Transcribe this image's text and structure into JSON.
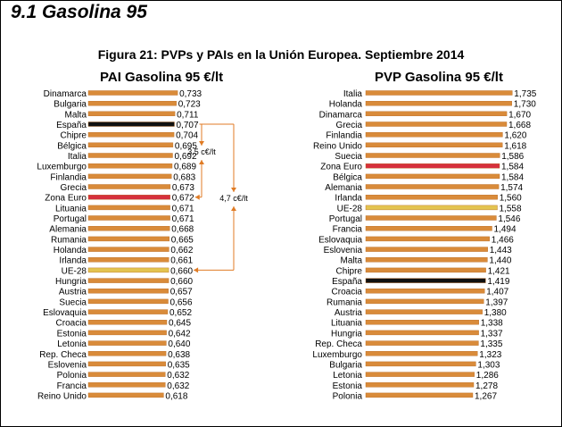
{
  "page": {
    "title": "9.1 Gasolina 95"
  },
  "figure": {
    "title": "Figura 21: PVPs y PAIs en la Unión Europea. Septiembre 2014"
  },
  "colors": {
    "bar": "#d98b3a",
    "bar_edge": "#b86a22",
    "highlight_spain": "#111111",
    "highlight_eurozone": "#d6303c",
    "highlight_eu28": "#e3c450",
    "annotation": "#e07b24"
  },
  "chart_data": [
    {
      "type": "bar",
      "orientation": "horizontal",
      "title": "PAI Gasolina 95 €/lt",
      "categories": [
        "Dinamarca",
        "Bulgaria",
        "Malta",
        "España",
        "Chipre",
        "Bélgica",
        "Italia",
        "Luxemburgo",
        "Finlandia",
        "Grecia",
        "Zona Euro",
        "Lituania",
        "Portugal",
        "Alemania",
        "Rumania",
        "Holanda",
        "Irlanda",
        "UE-28",
        "Hungria",
        "Austria",
        "Suecia",
        "Eslovaquia",
        "Croacia",
        "Estonia",
        "Letonia",
        "Rep. Checa",
        "Eslovenia",
        "Polonia",
        "Francia",
        "Reino Unido"
      ],
      "values": [
        0.733,
        0.723,
        0.711,
        0.707,
        0.704,
        0.695,
        0.692,
        0.689,
        0.683,
        0.673,
        0.672,
        0.671,
        0.671,
        0.668,
        0.665,
        0.662,
        0.661,
        0.66,
        0.66,
        0.657,
        0.656,
        0.652,
        0.645,
        0.642,
        0.64,
        0.638,
        0.635,
        0.632,
        0.632,
        0.618
      ],
      "value_labels": [
        "0,733",
        "0,723",
        "0,711",
        "0,707",
        "0,704",
        "0,695",
        "0,692",
        "0,689",
        "0,683",
        "0,673",
        "0,672",
        "0,671",
        "0,671",
        "0,668",
        "0,665",
        "0,662",
        "0,661",
        "0,660",
        "0,660",
        "0,657",
        "0,656",
        "0,652",
        "0,645",
        "0,642",
        "0,640",
        "0,638",
        "0,635",
        "0,632",
        "0,632",
        "0,618"
      ],
      "highlights": {
        "España": "highlight_spain",
        "Zona Euro": "highlight_eurozone",
        "UE-28": "highlight_eu28"
      },
      "annotations": [
        {
          "from": "España",
          "to": "Zona Euro",
          "label": "3,5 c€/lt"
        },
        {
          "from": "España",
          "to": "UE-28",
          "label": "4,7 c€/lt"
        }
      ]
    },
    {
      "type": "bar",
      "orientation": "horizontal",
      "title": "PVP Gasolina 95 €/lt",
      "categories": [
        "Italia",
        "Holanda",
        "Dinamarca",
        "Grecia",
        "Finlandia",
        "Reino Unido",
        "Suecia",
        "Zona Euro",
        "Bélgica",
        "Alemania",
        "Irlanda",
        "UE-28",
        "Portugal",
        "Francia",
        "Eslovaquia",
        "Eslovenia",
        "Malta",
        "Chipre",
        "España",
        "Croacia",
        "Rumania",
        "Austria",
        "Lituania",
        "Hungria",
        "Rep. Checa",
        "Luxemburgo",
        "Bulgaria",
        "Letonia",
        "Estonia",
        "Polonia"
      ],
      "values": [
        1.735,
        1.73,
        1.67,
        1.668,
        1.62,
        1.618,
        1.586,
        1.584,
        1.584,
        1.574,
        1.56,
        1.558,
        1.546,
        1.494,
        1.466,
        1.443,
        1.44,
        1.421,
        1.419,
        1.407,
        1.397,
        1.38,
        1.338,
        1.337,
        1.335,
        1.323,
        1.303,
        1.286,
        1.278,
        1.267
      ],
      "value_labels": [
        "1,735",
        "1,730",
        "1,670",
        "1,668",
        "1,620",
        "1,618",
        "1,586",
        "1,584",
        "1,584",
        "1,574",
        "1,560",
        "1,558",
        "1,546",
        "1,494",
        "1,466",
        "1,443",
        "1,440",
        "1,421",
        "1,419",
        "1,407",
        "1,397",
        "1,380",
        "1,338",
        "1,337",
        "1,335",
        "1,323",
        "1,303",
        "1,286",
        "1,278",
        "1,267"
      ],
      "highlights": {
        "España": "highlight_spain",
        "Zona Euro": "highlight_eurozone",
        "UE-28": "highlight_eu28"
      }
    }
  ]
}
